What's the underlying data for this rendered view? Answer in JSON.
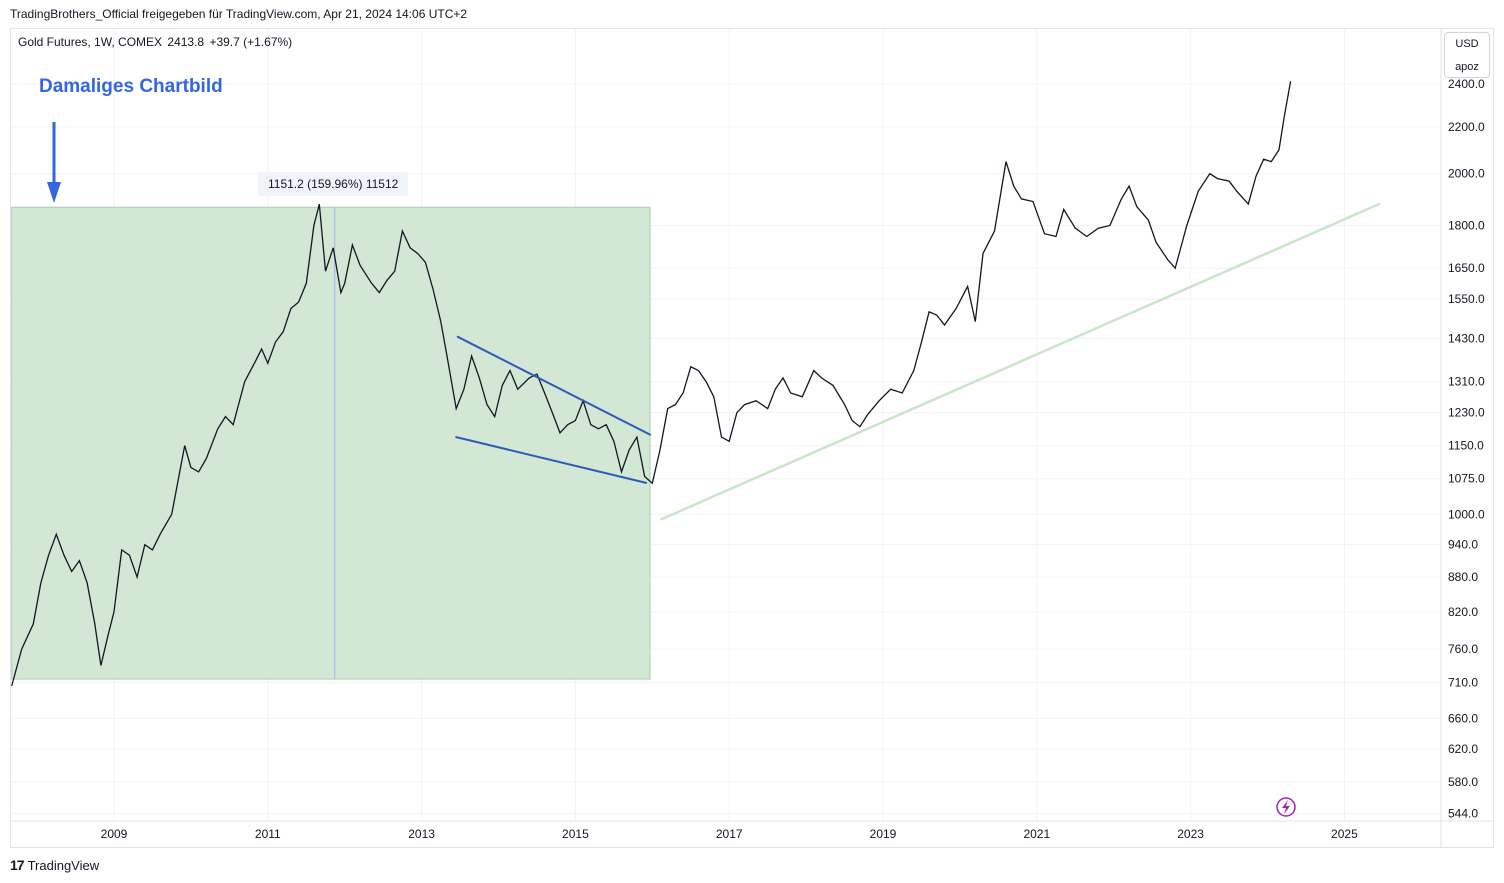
{
  "header": {
    "credit": "TradingBrothers_Official freigegeben für TradingView.com, Apr 21, 2024 14:06 UTC+2"
  },
  "symbol": {
    "name": "Gold Futures, 1W, COMEX",
    "price": "2413.8",
    "change": "+39.7 (+1.67%)"
  },
  "annotation": {
    "text": "Damaliges Chartbild",
    "color": "#3366e0"
  },
  "measure_label": "1151.2 (159.96%) 11512",
  "price_scale": {
    "currency": "USD",
    "mode": "apoz"
  },
  "footer": {
    "logo_mark": "17",
    "logo_text": "TradingView"
  },
  "colors": {
    "price_line": "#131722",
    "range_fill": "#d3e7d5",
    "range_border": "#a9cfae",
    "channel_lines": "#2e5bb8",
    "trendline": "#c8e6c9",
    "lightning": "#9c27b0"
  },
  "chart_data": {
    "type": "line",
    "scale": "log",
    "x_tick_labels": [
      "2009",
      "2011",
      "2013",
      "2015",
      "2017",
      "2019",
      "2021",
      "2023",
      "2025"
    ],
    "y_tick_labels": [
      "544.0",
      "580.0",
      "620.0",
      "660.0",
      "710.0",
      "760.0",
      "820.0",
      "880.0",
      "940.0",
      "1000.0",
      "1075.0",
      "1150.0",
      "1230.0",
      "1310.0",
      "1430.0",
      "1550.0",
      "1650.0",
      "1800.0",
      "2000.0",
      "2200.0",
      "2400.0"
    ],
    "xlim": [
      2007.67,
      2027.0
    ],
    "ylim": [
      540,
      2460
    ],
    "series": [
      {
        "points": [
          [
            2007.67,
            705
          ],
          [
            2007.8,
            760
          ],
          [
            2007.95,
            800
          ],
          [
            2008.05,
            870
          ],
          [
            2008.15,
            920
          ],
          [
            2008.25,
            960
          ],
          [
            2008.35,
            920
          ],
          [
            2008.45,
            890
          ],
          [
            2008.55,
            910
          ],
          [
            2008.65,
            870
          ],
          [
            2008.75,
            800
          ],
          [
            2008.83,
            735
          ],
          [
            2008.92,
            780
          ],
          [
            2009.0,
            820
          ],
          [
            2009.1,
            930
          ],
          [
            2009.2,
            920
          ],
          [
            2009.3,
            880
          ],
          [
            2009.4,
            940
          ],
          [
            2009.5,
            930
          ],
          [
            2009.6,
            960
          ],
          [
            2009.75,
            1000
          ],
          [
            2009.92,
            1150
          ],
          [
            2010.0,
            1100
          ],
          [
            2010.1,
            1090
          ],
          [
            2010.2,
            1120
          ],
          [
            2010.35,
            1190
          ],
          [
            2010.45,
            1220
          ],
          [
            2010.55,
            1200
          ],
          [
            2010.7,
            1310
          ],
          [
            2010.85,
            1370
          ],
          [
            2010.92,
            1400
          ],
          [
            2011.0,
            1360
          ],
          [
            2011.1,
            1420
          ],
          [
            2011.2,
            1450
          ],
          [
            2011.3,
            1520
          ],
          [
            2011.4,
            1540
          ],
          [
            2011.5,
            1600
          ],
          [
            2011.6,
            1800
          ],
          [
            2011.67,
            1880
          ],
          [
            2011.75,
            1640
          ],
          [
            2011.85,
            1720
          ],
          [
            2011.95,
            1570
          ],
          [
            2012.0,
            1600
          ],
          [
            2012.1,
            1730
          ],
          [
            2012.2,
            1660
          ],
          [
            2012.35,
            1600
          ],
          [
            2012.45,
            1570
          ],
          [
            2012.55,
            1610
          ],
          [
            2012.65,
            1640
          ],
          [
            2012.75,
            1780
          ],
          [
            2012.85,
            1720
          ],
          [
            2012.95,
            1700
          ],
          [
            2013.05,
            1670
          ],
          [
            2013.15,
            1580
          ],
          [
            2013.25,
            1480
          ],
          [
            2013.33,
            1380
          ],
          [
            2013.45,
            1240
          ],
          [
            2013.55,
            1290
          ],
          [
            2013.65,
            1380
          ],
          [
            2013.75,
            1320
          ],
          [
            2013.85,
            1250
          ],
          [
            2013.95,
            1220
          ],
          [
            2014.05,
            1300
          ],
          [
            2014.15,
            1340
          ],
          [
            2014.25,
            1290
          ],
          [
            2014.4,
            1320
          ],
          [
            2014.5,
            1330
          ],
          [
            2014.6,
            1280
          ],
          [
            2014.7,
            1230
          ],
          [
            2014.8,
            1180
          ],
          [
            2014.9,
            1200
          ],
          [
            2015.0,
            1210
          ],
          [
            2015.1,
            1260
          ],
          [
            2015.2,
            1200
          ],
          [
            2015.3,
            1190
          ],
          [
            2015.4,
            1200
          ],
          [
            2015.5,
            1160
          ],
          [
            2015.6,
            1090
          ],
          [
            2015.7,
            1140
          ],
          [
            2015.8,
            1170
          ],
          [
            2015.9,
            1080
          ],
          [
            2016.0,
            1065
          ],
          [
            2016.1,
            1140
          ],
          [
            2016.2,
            1240
          ],
          [
            2016.3,
            1250
          ],
          [
            2016.4,
            1280
          ],
          [
            2016.5,
            1350
          ],
          [
            2016.6,
            1340
          ],
          [
            2016.7,
            1310
          ],
          [
            2016.8,
            1270
          ],
          [
            2016.9,
            1170
          ],
          [
            2017.0,
            1160
          ],
          [
            2017.1,
            1230
          ],
          [
            2017.2,
            1250
          ],
          [
            2017.35,
            1260
          ],
          [
            2017.5,
            1240
          ],
          [
            2017.6,
            1290
          ],
          [
            2017.7,
            1320
          ],
          [
            2017.8,
            1280
          ],
          [
            2017.95,
            1270
          ],
          [
            2018.1,
            1340
          ],
          [
            2018.2,
            1320
          ],
          [
            2018.35,
            1300
          ],
          [
            2018.5,
            1250
          ],
          [
            2018.6,
            1210
          ],
          [
            2018.7,
            1195
          ],
          [
            2018.8,
            1225
          ],
          [
            2018.95,
            1260
          ],
          [
            2019.1,
            1290
          ],
          [
            2019.25,
            1280
          ],
          [
            2019.4,
            1340
          ],
          [
            2019.5,
            1420
          ],
          [
            2019.6,
            1510
          ],
          [
            2019.7,
            1500
          ],
          [
            2019.8,
            1470
          ],
          [
            2019.95,
            1520
          ],
          [
            2020.1,
            1590
          ],
          [
            2020.2,
            1480
          ],
          [
            2020.3,
            1700
          ],
          [
            2020.45,
            1780
          ],
          [
            2020.6,
            2050
          ],
          [
            2020.7,
            1950
          ],
          [
            2020.8,
            1900
          ],
          [
            2020.95,
            1890
          ],
          [
            2021.1,
            1770
          ],
          [
            2021.25,
            1760
          ],
          [
            2021.35,
            1860
          ],
          [
            2021.5,
            1790
          ],
          [
            2021.65,
            1760
          ],
          [
            2021.8,
            1790
          ],
          [
            2021.95,
            1800
          ],
          [
            2022.1,
            1900
          ],
          [
            2022.2,
            1950
          ],
          [
            2022.3,
            1870
          ],
          [
            2022.45,
            1820
          ],
          [
            2022.55,
            1740
          ],
          [
            2022.7,
            1680
          ],
          [
            2022.8,
            1650
          ],
          [
            2022.95,
            1800
          ],
          [
            2023.1,
            1930
          ],
          [
            2023.25,
            2000
          ],
          [
            2023.35,
            1980
          ],
          [
            2023.5,
            1970
          ],
          [
            2023.6,
            1930
          ],
          [
            2023.75,
            1880
          ],
          [
            2023.85,
            1990
          ],
          [
            2023.95,
            2060
          ],
          [
            2024.05,
            2050
          ],
          [
            2024.15,
            2100
          ],
          [
            2024.22,
            2250
          ],
          [
            2024.3,
            2413.8
          ]
        ]
      }
    ],
    "shaded_range": {
      "x": [
        2007.67,
        2015.97
      ],
      "y": [
        715,
        1868
      ]
    },
    "measure_marker": {
      "x": 2011.87,
      "y": [
        715,
        1868
      ]
    },
    "falling_channel": {
      "upper": [
        [
          2013.47,
          1435
        ],
        [
          2015.97,
          1176
        ]
      ],
      "lower": [
        [
          2013.45,
          1170
        ],
        [
          2015.92,
          1066
        ]
      ]
    },
    "long_trendline": [
      [
        2016.12,
        990
      ],
      [
        2025.45,
        1880
      ]
    ]
  }
}
